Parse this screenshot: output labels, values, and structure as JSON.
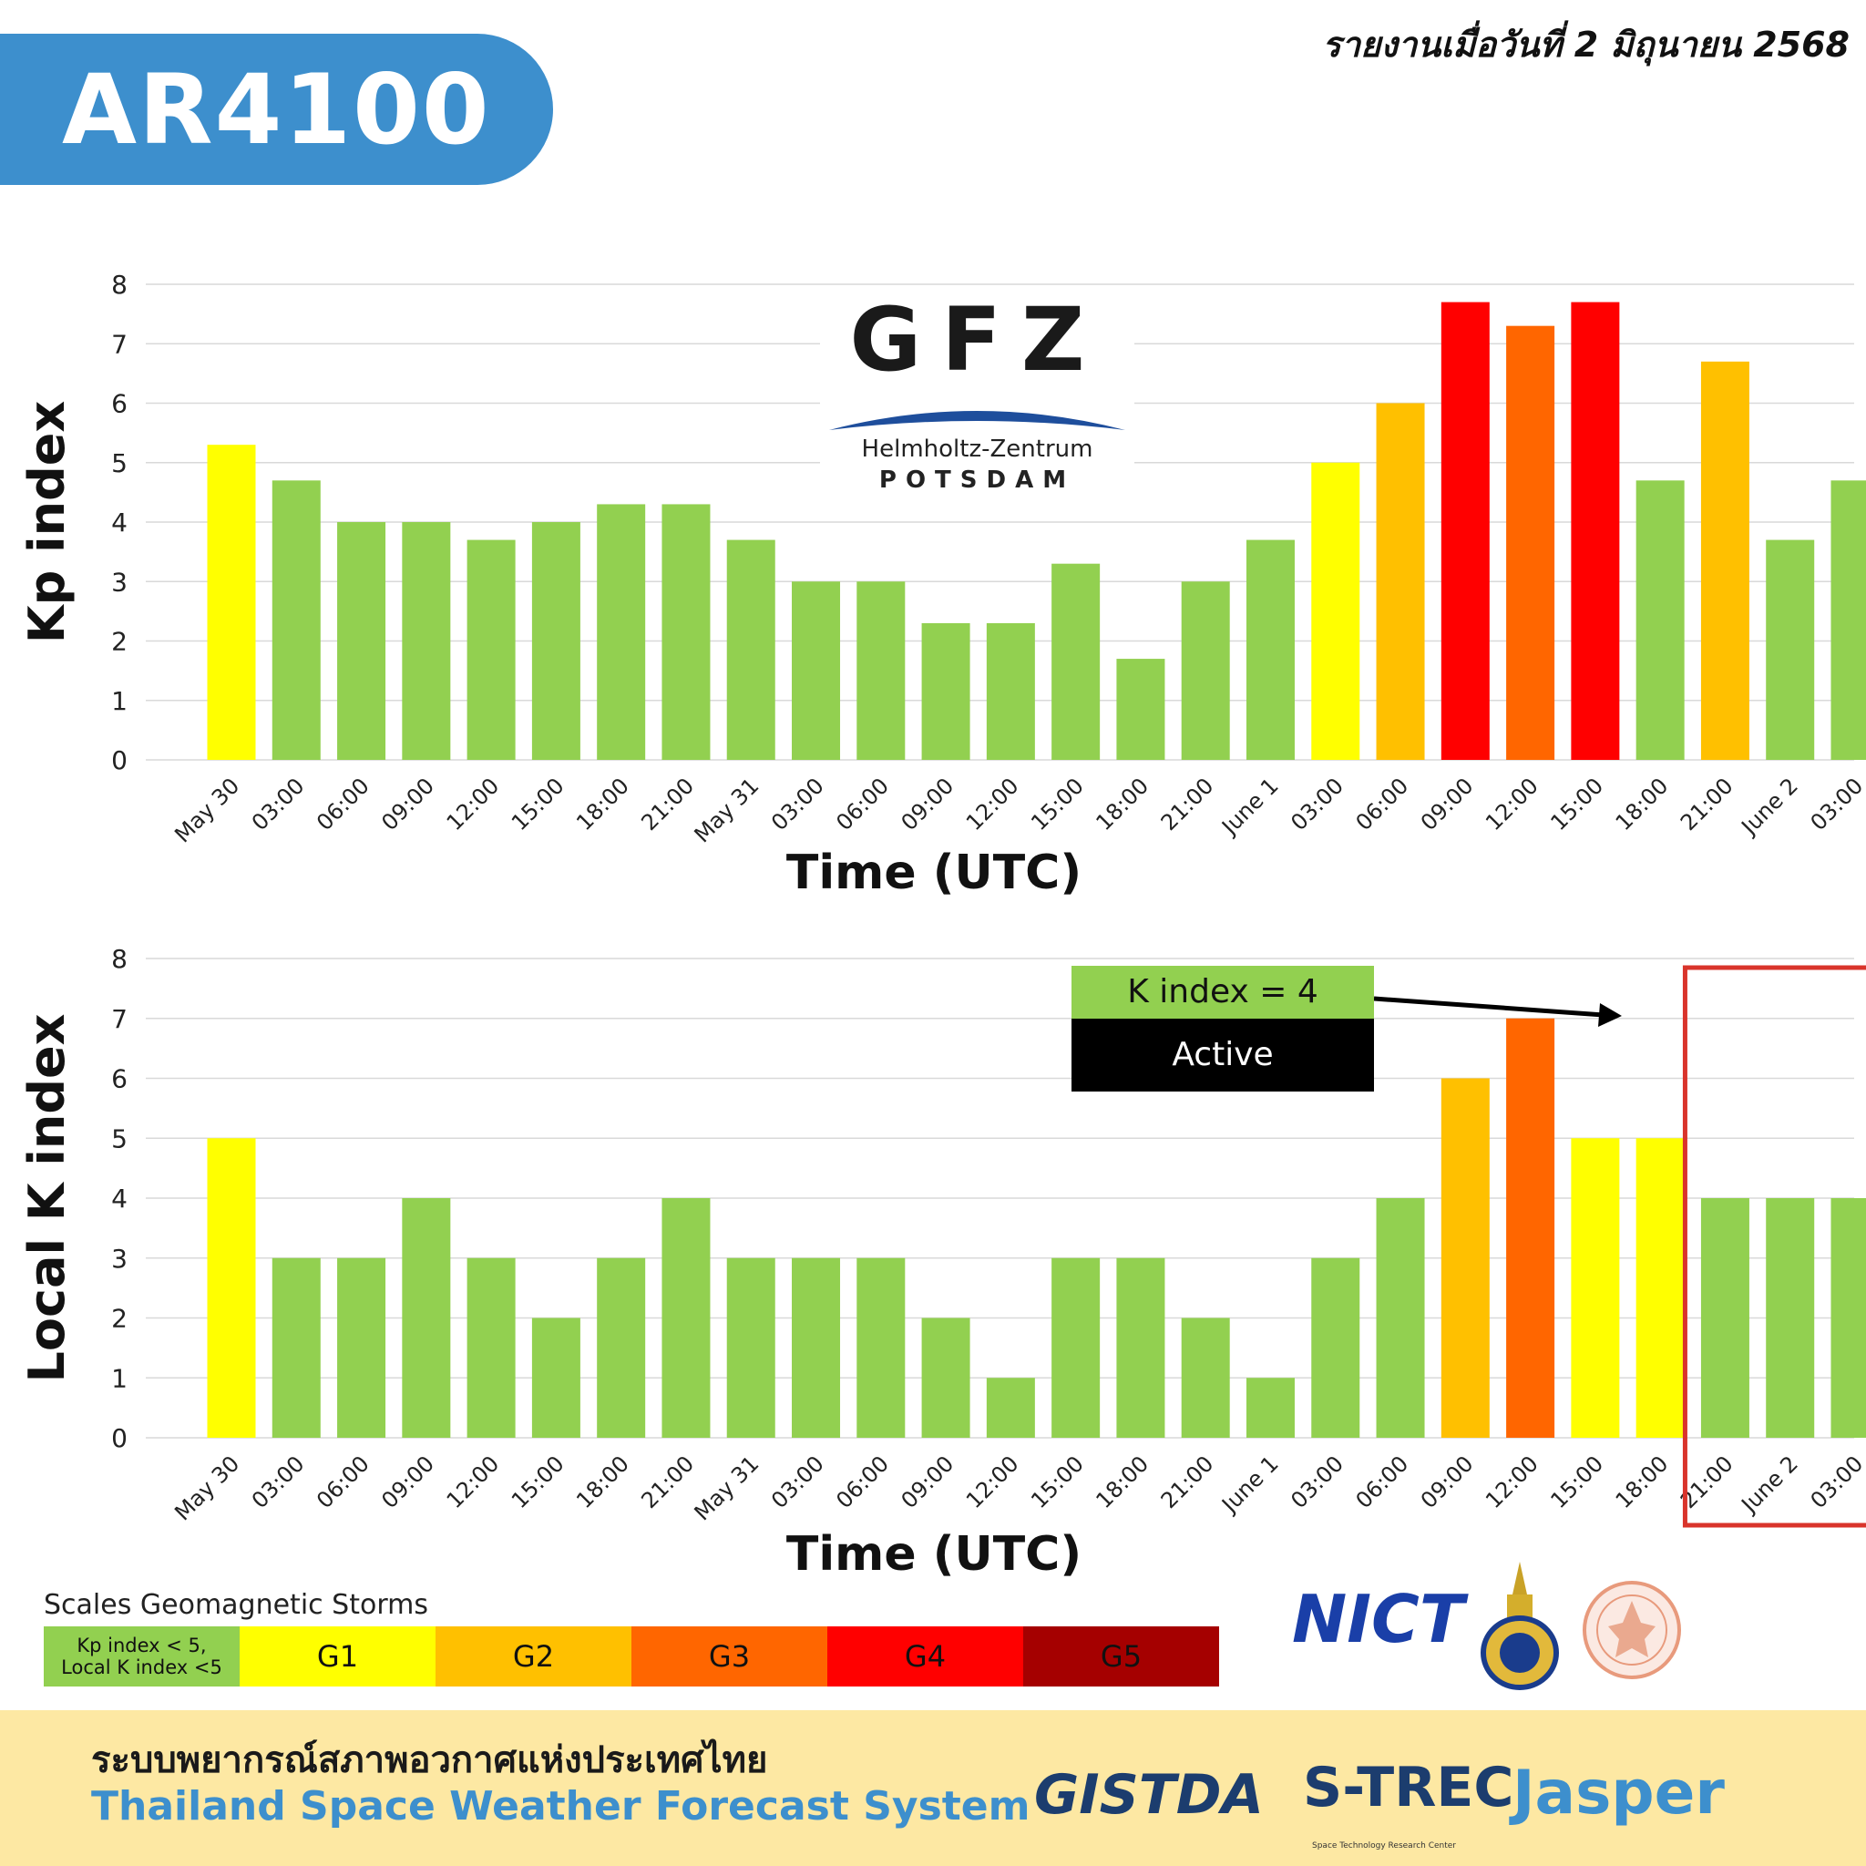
{
  "header": {
    "title": "AR4100",
    "report_date": "รายงานเมื่อวันที่ 2 มิถุนายน 2568"
  },
  "gfz_logo": {
    "name": "GFZ",
    "line1": "Helmholtz-Zentrum",
    "line2": "POTSDAM"
  },
  "colors": {
    "quiet": "#92d050",
    "G1": "#ffff00",
    "G2": "#ffc000",
    "G3": "#ff6600",
    "G4": "#ff0000",
    "G5": "#a50000",
    "grid": "#d9d9d9",
    "highlight": "#d9342b"
  },
  "chart_data": [
    {
      "type": "bar",
      "ylabel": "Kp index",
      "xlabel": "Time (UTC)",
      "ylim": [
        0,
        8
      ],
      "yticks": [
        0,
        1,
        2,
        3,
        4,
        5,
        6,
        7,
        8
      ],
      "grid": true,
      "categories": [
        "May 30",
        "03:00",
        "06:00",
        "09:00",
        "12:00",
        "15:00",
        "18:00",
        "21:00",
        "May 31",
        "03:00",
        "06:00",
        "09:00",
        "12:00",
        "15:00",
        "18:00",
        "21:00",
        "June 1",
        "03:00",
        "06:00",
        "09:00",
        "12:00",
        "15:00",
        "18:00",
        "21:00",
        "June 2",
        "03:00"
      ],
      "values": [
        5.3,
        4.7,
        4.0,
        4.0,
        3.7,
        4.0,
        4.3,
        4.3,
        3.7,
        3.0,
        3.0,
        2.3,
        2.3,
        3.3,
        1.7,
        3.0,
        3.7,
        5.0,
        6.0,
        7.7,
        7.3,
        7.7,
        4.7,
        6.7,
        3.7,
        4.7
      ]
    },
    {
      "type": "bar",
      "ylabel": "Local K index",
      "xlabel": "Time (UTC)",
      "ylim": [
        0,
        8
      ],
      "yticks": [
        0,
        1,
        2,
        3,
        4,
        5,
        6,
        7,
        8
      ],
      "grid": true,
      "categories": [
        "May 30",
        "03:00",
        "06:00",
        "09:00",
        "12:00",
        "15:00",
        "18:00",
        "21:00",
        "May 31",
        "03:00",
        "06:00",
        "09:00",
        "12:00",
        "15:00",
        "18:00",
        "21:00",
        "June 1",
        "03:00",
        "06:00",
        "09:00",
        "12:00",
        "15:00",
        "18:00",
        "21:00",
        "June 2",
        "03:00"
      ],
      "values": [
        5,
        3,
        3,
        4,
        3,
        2,
        3,
        4,
        3,
        3,
        3,
        2,
        1,
        3,
        3,
        2,
        1,
        3,
        4,
        6,
        7,
        5,
        5,
        4,
        4,
        4
      ],
      "annotation": {
        "label": "K index = 4",
        "status": "Active",
        "highlight_categories": [
          "21:00",
          "June 2",
          "03:00"
        ]
      }
    }
  ],
  "legend": {
    "title": "Scales Geomagnetic Storms",
    "items": [
      {
        "label": "Kp index < 5,\nLocal K index <5",
        "color": "#92d050"
      },
      {
        "label": "G1",
        "color": "#ffff00"
      },
      {
        "label": "G2",
        "color": "#ffc000"
      },
      {
        "label": "G3",
        "color": "#ff6600"
      },
      {
        "label": "G4",
        "color": "#ff0000"
      },
      {
        "label": "G5",
        "color": "#a50000"
      }
    ]
  },
  "footer": {
    "title_th": "ระบบพยากรณ์สภาพอวกาศแห่งประเทศไทย",
    "title_en": "Thailand Space Weather Forecast System"
  },
  "logos": {
    "nict": "NICT",
    "gistda": "GISTDA",
    "strec": "S-TREC",
    "strec_sub": "Space Technology Research Center",
    "jasper": "Jasper"
  }
}
